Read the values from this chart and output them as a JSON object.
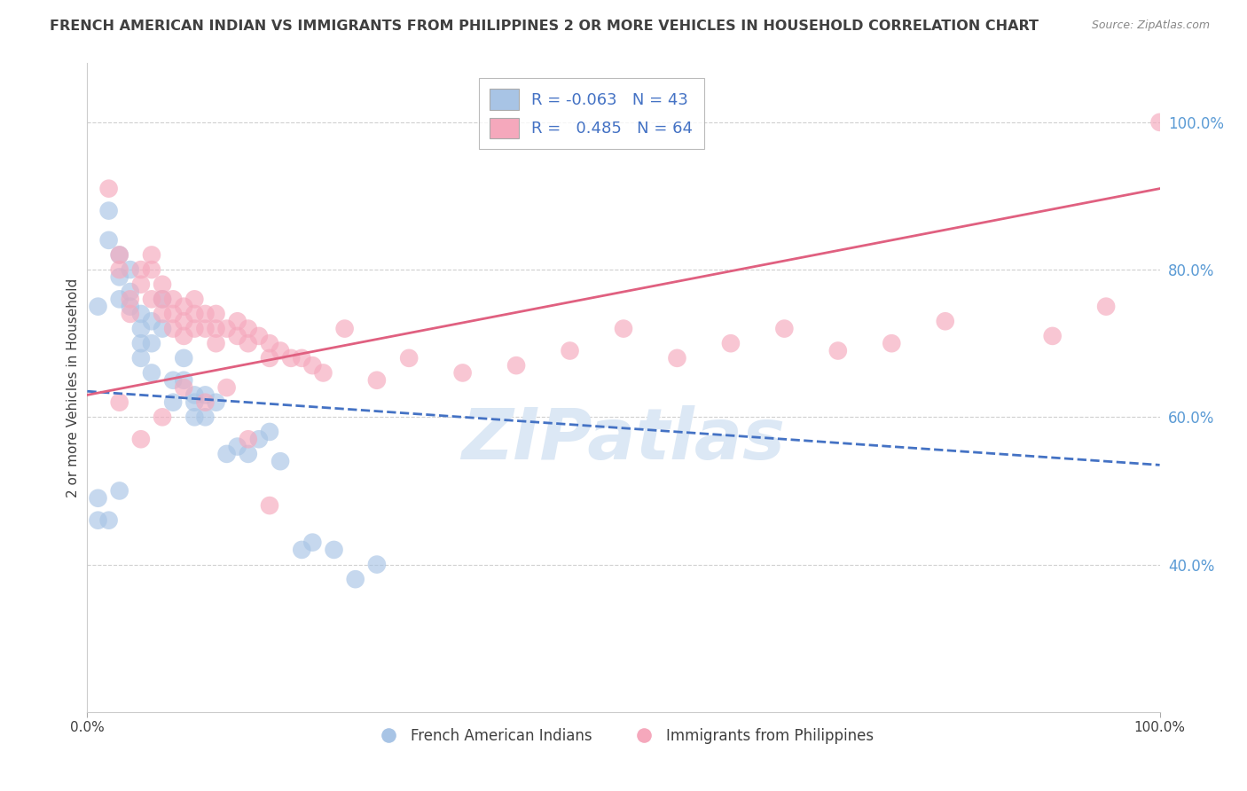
{
  "title": "FRENCH AMERICAN INDIAN VS IMMIGRANTS FROM PHILIPPINES 2 OR MORE VEHICLES IN HOUSEHOLD CORRELATION CHART",
  "source": "Source: ZipAtlas.com",
  "ylabel": "2 or more Vehicles in Household",
  "blue_R": -0.063,
  "blue_N": 43,
  "pink_R": 0.485,
  "pink_N": 64,
  "blue_label": "French American Indians",
  "pink_label": "Immigrants from Philippines",
  "blue_color": "#a8c4e5",
  "pink_color": "#f5a8bc",
  "blue_line_color": "#4472c4",
  "pink_line_color": "#e06080",
  "watermark_color": "#dce8f5",
  "background_color": "#ffffff",
  "grid_color": "#d0d0d0",
  "title_color": "#404040",
  "right_axis_color": "#5b9bd5",
  "legend_label_color": "#4472c4",
  "xlim": [
    0,
    100
  ],
  "ylim": [
    20,
    108
  ],
  "ytick_positions": [
    40,
    60,
    80,
    100
  ],
  "yticklabels_right": [
    "40.0%",
    "60.0%",
    "80.0%",
    "100.0%"
  ],
  "blue_line_start_y": 63.5,
  "blue_line_end_y": 53.5,
  "pink_line_start_y": 63.0,
  "pink_line_end_y": 91.0,
  "blue_x": [
    1,
    2,
    2,
    3,
    3,
    3,
    4,
    4,
    4,
    5,
    5,
    5,
    5,
    6,
    6,
    6,
    7,
    7,
    8,
    8,
    9,
    9,
    10,
    10,
    10,
    11,
    11,
    12,
    13,
    14,
    15,
    16,
    17,
    18,
    20,
    21,
    23,
    25,
    27,
    3,
    2,
    1,
    1
  ],
  "blue_y": [
    75,
    84,
    88,
    82,
    79,
    76,
    80,
    77,
    75,
    74,
    72,
    70,
    68,
    73,
    70,
    66,
    76,
    72,
    65,
    62,
    68,
    65,
    63,
    62,
    60,
    63,
    60,
    62,
    55,
    56,
    55,
    57,
    58,
    54,
    42,
    43,
    42,
    38,
    40,
    50,
    46,
    49,
    46
  ],
  "pink_x": [
    2,
    3,
    3,
    4,
    4,
    5,
    5,
    6,
    6,
    6,
    7,
    7,
    7,
    8,
    8,
    8,
    9,
    9,
    9,
    10,
    10,
    10,
    11,
    11,
    12,
    12,
    12,
    13,
    14,
    14,
    15,
    15,
    16,
    17,
    17,
    18,
    19,
    20,
    21,
    22,
    24,
    27,
    30,
    35,
    40,
    45,
    50,
    55,
    60,
    65,
    70,
    75,
    80,
    90,
    95,
    100,
    3,
    5,
    7,
    9,
    11,
    13,
    15,
    17
  ],
  "pink_y": [
    91,
    82,
    80,
    76,
    74,
    80,
    78,
    82,
    80,
    76,
    78,
    76,
    74,
    76,
    74,
    72,
    75,
    73,
    71,
    76,
    74,
    72,
    74,
    72,
    74,
    72,
    70,
    72,
    73,
    71,
    72,
    70,
    71,
    70,
    68,
    69,
    68,
    68,
    67,
    66,
    72,
    65,
    68,
    66,
    67,
    69,
    72,
    68,
    70,
    72,
    69,
    70,
    73,
    71,
    75,
    100,
    62,
    57,
    60,
    64,
    62,
    64,
    57,
    48
  ]
}
